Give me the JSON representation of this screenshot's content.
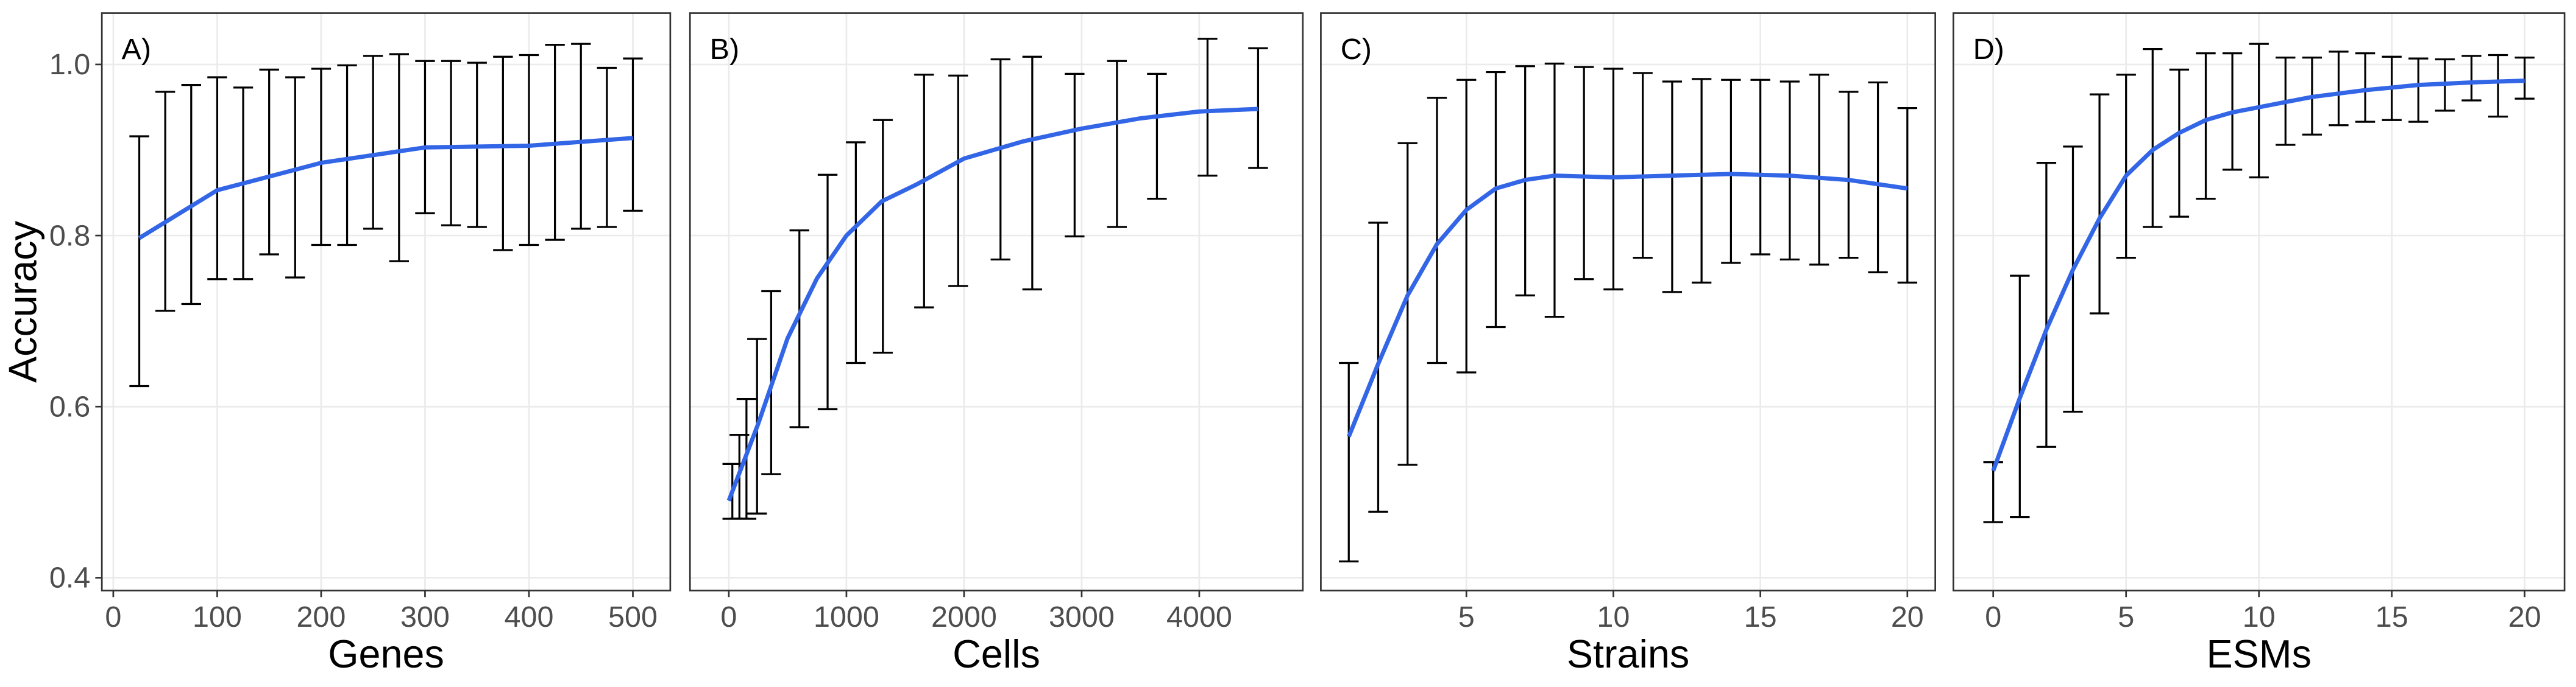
{
  "chart_data": [
    {
      "type": "errorbar",
      "panel_label": "A)",
      "xlabel": "Genes",
      "ylabel": "Accuracy",
      "x": [
        25,
        50,
        75,
        100,
        125,
        150,
        175,
        200,
        225,
        250,
        275,
        300,
        325,
        350,
        375,
        400,
        425,
        450,
        475,
        500
      ],
      "values": [
        0.77,
        0.84,
        0.848,
        0.867,
        0.861,
        0.886,
        0.868,
        0.892,
        0.894,
        0.909,
        0.891,
        0.915,
        0.908,
        0.906,
        0.896,
        0.9,
        0.909,
        0.916,
        0.903,
        0.918
      ],
      "errors": [
        0.146,
        0.128,
        0.128,
        0.118,
        0.112,
        0.108,
        0.117,
        0.103,
        0.105,
        0.101,
        0.121,
        0.089,
        0.096,
        0.096,
        0.113,
        0.111,
        0.114,
        0.108,
        0.093,
        0.089
      ],
      "smooth_x": [
        25,
        100,
        200,
        300,
        400,
        500
      ],
      "smooth": [
        0.797,
        0.853,
        0.885,
        0.903,
        0.905,
        0.914
      ],
      "color": "#000000",
      "smooth_color": "#3366e6",
      "xlim": [
        -11,
        536
      ],
      "xticks": [
        0,
        100,
        200,
        300,
        400,
        500
      ],
      "ylim": [
        0.385,
        1.06
      ],
      "yticks": [
        0.4,
        0.6,
        0.8,
        {
          "value": 1,
          "label": "1.0"
        }
      ],
      "grid": true
    },
    {
      "type": "errorbar",
      "panel_label": "B)",
      "xlabel": "Cells",
      "x": [
        30,
        90,
        150,
        240,
        360,
        600,
        840,
        1080,
        1310,
        1660,
        1950,
        2310,
        2580,
        2940,
        3300,
        3640,
        4070,
        4500
      ],
      "values": [
        0.501,
        0.518,
        0.539,
        0.577,
        0.628,
        0.691,
        0.734,
        0.78,
        0.799,
        0.852,
        0.864,
        0.889,
        0.873,
        0.894,
        0.907,
        0.916,
        0.95,
        0.949
      ],
      "errors": [
        0.032,
        0.049,
        0.07,
        0.102,
        0.107,
        0.115,
        0.137,
        0.129,
        0.136,
        0.136,
        0.123,
        0.117,
        0.136,
        0.095,
        0.097,
        0.073,
        0.08,
        0.07
      ],
      "smooth_x": [
        0,
        250,
        500,
        750,
        1000,
        1300,
        1600,
        2000,
        2500,
        3000,
        3500,
        4000,
        4500
      ],
      "smooth": [
        0.49,
        0.58,
        0.68,
        0.75,
        0.8,
        0.84,
        0.86,
        0.89,
        0.91,
        0.925,
        0.937,
        0.945,
        0.948
      ],
      "color": "#000000",
      "smooth_color": "#3366e6",
      "xlim": [
        -330,
        4880
      ],
      "xticks": [
        0,
        1000,
        2000,
        3000,
        4000
      ],
      "ylim": [
        0.385,
        1.06
      ],
      "yticks": [
        0.4,
        0.6,
        0.8,
        {
          "value": 1,
          "label": "1.0"
        }
      ],
      "grid": true
    },
    {
      "type": "errorbar",
      "panel_label": "C)",
      "xlabel": "Strains",
      "x": [
        1,
        2,
        3,
        4,
        5,
        6,
        7,
        8,
        9,
        10,
        11,
        12,
        13,
        14,
        15,
        16,
        17,
        18,
        19,
        20
      ],
      "values": [
        0.535,
        0.646,
        0.72,
        0.806,
        0.811,
        0.842,
        0.864,
        0.853,
        0.873,
        0.866,
        0.882,
        0.857,
        0.864,
        0.875,
        0.88,
        0.876,
        0.877,
        0.871,
        0.868,
        0.847
      ],
      "errors": [
        0.116,
        0.169,
        0.188,
        0.155,
        0.171,
        0.149,
        0.134,
        0.148,
        0.124,
        0.129,
        0.108,
        0.123,
        0.119,
        0.107,
        0.102,
        0.104,
        0.111,
        0.097,
        0.111,
        0.102
      ],
      "smooth_x": [
        1,
        2,
        3,
        4,
        5,
        6,
        7,
        8,
        10,
        12,
        14,
        16,
        18,
        20
      ],
      "smooth": [
        0.565,
        0.65,
        0.73,
        0.79,
        0.83,
        0.855,
        0.865,
        0.87,
        0.868,
        0.87,
        0.872,
        0.87,
        0.865,
        0.855
      ],
      "color": "#000000",
      "smooth_color": "#3366e6",
      "xlim": [
        0.05,
        20.95
      ],
      "xticks": [
        5,
        10,
        15,
        20
      ],
      "ylim": [
        0.385,
        1.06
      ],
      "yticks": [
        0.4,
        0.6,
        0.8,
        {
          "value": 1,
          "label": "1.0"
        }
      ],
      "grid": true
    },
    {
      "type": "errorbar",
      "panel_label": "D)",
      "xlabel": "ESMs",
      "x": [
        0,
        1,
        2,
        3,
        4,
        5,
        6,
        7,
        8,
        9,
        10,
        11,
        12,
        13,
        14,
        15,
        16,
        17,
        18,
        19,
        20
      ],
      "values": [
        0.5,
        0.612,
        0.719,
        0.749,
        0.837,
        0.881,
        0.914,
        0.908,
        0.928,
        0.945,
        0.946,
        0.957,
        0.963,
        0.972,
        0.973,
        0.972,
        0.97,
        0.976,
        0.984,
        0.975,
        0.984
      ],
      "errors": [
        0.035,
        0.141,
        0.166,
        0.155,
        0.128,
        0.107,
        0.104,
        0.086,
        0.085,
        0.068,
        0.078,
        0.051,
        0.045,
        0.043,
        0.04,
        0.037,
        0.037,
        0.03,
        0.026,
        0.036,
        0.024
      ],
      "smooth_x": [
        0,
        1,
        2,
        3,
        4,
        5,
        6,
        7,
        8,
        9,
        10,
        12,
        14,
        16,
        18,
        20
      ],
      "smooth": [
        0.525,
        0.61,
        0.69,
        0.76,
        0.82,
        0.87,
        0.9,
        0.92,
        0.935,
        0.944,
        0.95,
        0.962,
        0.97,
        0.976,
        0.979,
        0.981
      ],
      "color": "#000000",
      "smooth_color": "#3366e6",
      "xlim": [
        -1.5,
        21.5
      ],
      "xticks": [
        0,
        5,
        10,
        15,
        20
      ],
      "ylim": [
        0.385,
        1.06
      ],
      "yticks": [
        0.4,
        0.6,
        0.8,
        {
          "value": 1,
          "label": "1.0"
        }
      ],
      "grid": true
    }
  ]
}
